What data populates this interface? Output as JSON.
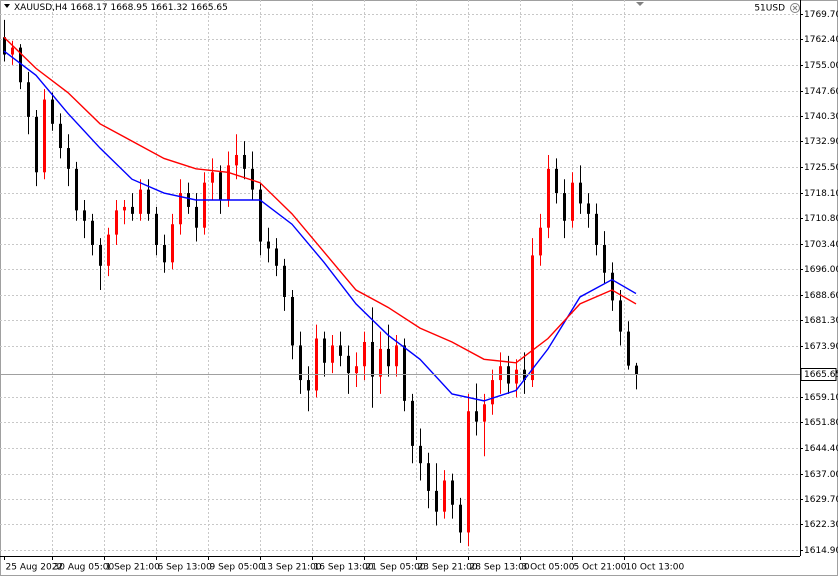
{
  "chart_data": {
    "type": "candlestick",
    "title": "XAUUSD,H4",
    "corner_label": "51USD",
    "up_color": "#ff0000",
    "down_color": "#000000",
    "grid": true,
    "xlim": [
      -0.5,
      99.5
    ],
    "ylim": [
      1613.2,
      1773.75
    ],
    "xticks": [
      {
        "value": 0,
        "label": "25 Aug 2022"
      },
      {
        "value": 6,
        "label": "30 Aug 05:00"
      },
      {
        "value": 12.5,
        "label": "1 Sep 21:00"
      },
      {
        "value": 19,
        "label": "6 Sep 13:00"
      },
      {
        "value": 25.5,
        "label": "9 Sep 05:00"
      },
      {
        "value": 32,
        "label": "13 Sep 21:00"
      },
      {
        "value": 38.5,
        "label": "16 Sep 13:00"
      },
      {
        "value": 45,
        "label": "21 Sep 05:00"
      },
      {
        "value": 51.5,
        "label": "23 Sep 21:00"
      },
      {
        "value": 58,
        "label": "28 Sep 13:00"
      },
      {
        "value": 64.5,
        "label": "3 Oct 05:00"
      },
      {
        "value": 71,
        "label": "5 Oct 21:00"
      },
      {
        "value": 77.5,
        "label": "10 Oct 13:00"
      }
    ],
    "yticks": [
      {
        "value": 1769.7,
        "label": "1769.70"
      },
      {
        "value": 1762.4,
        "label": "1762.40"
      },
      {
        "value": 1755,
        "label": "1755.00"
      },
      {
        "value": 1747.6,
        "label": "1747.60"
      },
      {
        "value": 1740.3,
        "label": "1740.30"
      },
      {
        "value": 1732.9,
        "label": "1732.90"
      },
      {
        "value": 1725.5,
        "label": "1725.50"
      },
      {
        "value": 1718.1,
        "label": "1718.10"
      },
      {
        "value": 1710.8,
        "label": "1710.80"
      },
      {
        "value": 1703.4,
        "label": "1703.40"
      },
      {
        "value": 1696,
        "label": "1696.00"
      },
      {
        "value": 1688.6,
        "label": "1688.60"
      },
      {
        "value": 1681.3,
        "label": "1681.30"
      },
      {
        "value": 1673.9,
        "label": "1673.90"
      },
      {
        "value": 1659.1,
        "label": "1659.10"
      },
      {
        "value": 1651.8,
        "label": "1651.80"
      },
      {
        "value": 1644.4,
        "label": "1644.40"
      },
      {
        "value": 1637,
        "label": "1637.00"
      },
      {
        "value": 1629.7,
        "label": "1629.70"
      },
      {
        "value": 1622.3,
        "label": "1622.30"
      },
      {
        "value": 1614.9,
        "label": "1614.90"
      }
    ],
    "open": [
      1763,
      1758,
      1760,
      1750,
      1740,
      1724,
      1745,
      1738,
      1731,
      1725,
      1713,
      1710,
      1703,
      1697,
      1706,
      1713,
      1714,
      1712,
      1719,
      1712,
      1703,
      1698,
      1709,
      1718,
      1714,
      1708,
      1721,
      1724,
      1716,
      1726,
      1729,
      1725,
      1719,
      1704,
      1702,
      1697,
      1688,
      1674,
      1664,
      1661,
      1676,
      1669,
      1674,
      1671,
      1666,
      1668,
      1675,
      1665,
      1673,
      1668,
      1674,
      1658,
      1645,
      1640,
      1632,
      1626,
      1635,
      1628,
      1620,
      1655,
      1652,
      1657,
      1664,
      1668,
      1663,
      1667,
      1664,
      1700,
      1708,
      1725,
      1718,
      1710,
      1721,
      1715,
      1712,
      1703,
      1695,
      1687,
      1678,
      1668.17
    ],
    "high": [
      1768,
      1762,
      1761,
      1753,
      1742,
      1748,
      1747,
      1741,
      1735,
      1727,
      1716,
      1712,
      1705,
      1708,
      1716,
      1716,
      1718,
      1722,
      1722,
      1714,
      1706,
      1712,
      1722,
      1721,
      1718,
      1724,
      1728,
      1726,
      1730,
      1735,
      1733,
      1730,
      1721,
      1708,
      1705,
      1699,
      1690,
      1678,
      1668,
      1680,
      1678,
      1677,
      1678,
      1674,
      1672,
      1678,
      1685,
      1678,
      1680,
      1677,
      1676,
      1660,
      1650,
      1643,
      1640,
      1638,
      1637,
      1630,
      1660,
      1663,
      1660,
      1667,
      1672,
      1671,
      1670,
      1672,
      1705,
      1712,
      1729,
      1728,
      1722,
      1724,
      1726,
      1718,
      1715,
      1707,
      1698,
      1690,
      1681,
      1668.95
    ],
    "low": [
      1756,
      1755,
      1748,
      1735,
      1720,
      1722,
      1736,
      1728,
      1720,
      1710,
      1705,
      1700,
      1690,
      1694,
      1703,
      1709,
      1710,
      1710,
      1710,
      1700,
      1695,
      1696,
      1706,
      1712,
      1704,
      1706,
      1716,
      1712,
      1714,
      1722,
      1722,
      1716,
      1700,
      1698,
      1694,
      1684,
      1670,
      1660,
      1655,
      1659,
      1665,
      1666,
      1668,
      1660,
      1662,
      1664,
      1656,
      1660,
      1665,
      1665,
      1655,
      1640,
      1635,
      1627,
      1622,
      1624,
      1624,
      1617,
      1616,
      1648,
      1642,
      1654,
      1660,
      1660,
      1659,
      1660,
      1662,
      1697,
      1705,
      1715,
      1705,
      1708,
      1712,
      1708,
      1700,
      1692,
      1684,
      1674,
      1667,
      1661.32
    ],
    "close": [
      1758,
      1760,
      1750,
      1740,
      1724,
      1745,
      1738,
      1731,
      1725,
      1713,
      1710,
      1703,
      1697,
      1706,
      1713,
      1714,
      1712,
      1719,
      1712,
      1703,
      1698,
      1709,
      1718,
      1714,
      1708,
      1721,
      1724,
      1716,
      1726,
      1729,
      1725,
      1719,
      1704,
      1702,
      1697,
      1688,
      1674,
      1664,
      1661,
      1676,
      1669,
      1674,
      1671,
      1666,
      1668,
      1675,
      1665,
      1673,
      1668,
      1674,
      1658,
      1645,
      1640,
      1632,
      1626,
      1635,
      1628,
      1620,
      1655,
      1652,
      1657,
      1664,
      1668,
      1663,
      1667,
      1664,
      1700,
      1708,
      1725,
      1718,
      1710,
      1721,
      1715,
      1712,
      1703,
      1695,
      1687,
      1678,
      1668.17,
      1665.65
    ],
    "series": [
      {
        "color": "#0000ff",
        "x": [
          0,
          4,
          8,
          12,
          16,
          20,
          24,
          28,
          32,
          36,
          40,
          44,
          48,
          52,
          56,
          60,
          64,
          68,
          72,
          76,
          79
        ],
        "values": [
          1759,
          1752,
          1741,
          1731,
          1722,
          1718,
          1716,
          1716,
          1716,
          1709,
          1698,
          1686,
          1677,
          1670,
          1660,
          1658,
          1661,
          1673,
          1688,
          1693,
          1689
        ]
      },
      {
        "color": "#ff0000",
        "x": [
          0,
          4,
          8,
          12,
          16,
          20,
          24,
          28,
          32,
          36,
          40,
          44,
          48,
          52,
          56,
          60,
          64,
          68,
          72,
          76,
          79
        ],
        "values": [
          1763,
          1754,
          1747,
          1738,
          1733,
          1728,
          1725,
          1724,
          1721,
          1712,
          1701,
          1690,
          1685,
          1679,
          1675,
          1670,
          1669,
          1676,
          1686,
          1690,
          1686
        ]
      }
    ]
  }
}
